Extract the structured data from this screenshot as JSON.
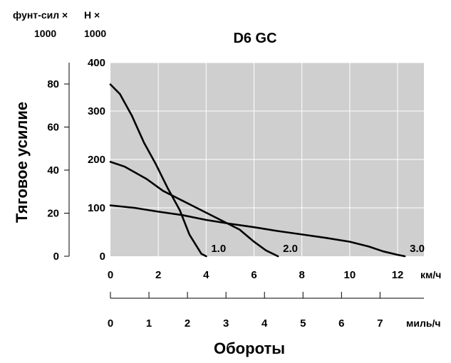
{
  "chart_data": {
    "type": "line",
    "title": "D6 GC",
    "ylabel": "Тяговое усилие",
    "xlabel": "Обороты",
    "y_left_unit": [
      "фунт-сил ×",
      "1000"
    ],
    "y_right_unit": [
      "Н ×",
      "1000"
    ],
    "x_kmh_unit": "км/ч",
    "x_mph_unit": "миль/ч",
    "y_left_ticks": [
      "0",
      "20",
      "40",
      "60",
      "80"
    ],
    "y_right_ticks": [
      "0",
      "100",
      "200",
      "300",
      "400"
    ],
    "x_kmh_ticks": [
      "0",
      "2",
      "4",
      "6",
      "8",
      "10",
      "12"
    ],
    "x_mph_ticks": [
      "0",
      "1",
      "2",
      "3",
      "4",
      "5",
      "6",
      "7"
    ],
    "xlim_kmh": [
      0,
      13.1
    ],
    "ylim_kN": [
      0,
      400
    ],
    "grid": true,
    "series": [
      {
        "name": "1.0",
        "points": [
          [
            0,
            355
          ],
          [
            0.4,
            335
          ],
          [
            0.9,
            290
          ],
          [
            1.4,
            235
          ],
          [
            1.9,
            190
          ],
          [
            2.4,
            140
          ],
          [
            2.9,
            95
          ],
          [
            3.3,
            45
          ],
          [
            3.8,
            5
          ],
          [
            4.0,
            0
          ]
        ]
      },
      {
        "name": "2.0",
        "points": [
          [
            0,
            195
          ],
          [
            0.6,
            185
          ],
          [
            1.5,
            160
          ],
          [
            2.2,
            135
          ],
          [
            3.0,
            115
          ],
          [
            3.8,
            95
          ],
          [
            4.6,
            75
          ],
          [
            5.4,
            55
          ],
          [
            6.0,
            30
          ],
          [
            6.5,
            12
          ],
          [
            7.0,
            0
          ]
        ]
      },
      {
        "name": "3.0",
        "points": [
          [
            0,
            105
          ],
          [
            1.0,
            100
          ],
          [
            2.0,
            92
          ],
          [
            3.0,
            85
          ],
          [
            4.0,
            75
          ],
          [
            5.0,
            67
          ],
          [
            6.0,
            60
          ],
          [
            7.0,
            52
          ],
          [
            8.0,
            45
          ],
          [
            9.0,
            38
          ],
          [
            10.0,
            30
          ],
          [
            10.8,
            20
          ],
          [
            11.4,
            10
          ],
          [
            12.0,
            3
          ],
          [
            12.3,
            0
          ]
        ]
      }
    ]
  }
}
